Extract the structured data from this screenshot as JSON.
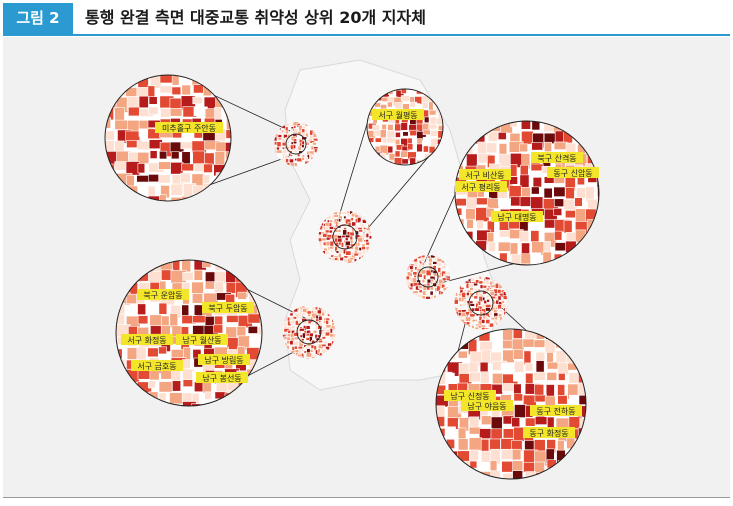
{
  "header": {
    "figure_label": "그림 2",
    "title": "통행 완결 측면 대중교통 취약성 상위 20개 지자체"
  },
  "colors": {
    "accent": "#2a9ad0",
    "label_bg": "#f2e52a",
    "darkest": "#6b0a0a",
    "dark": "#b71c1c",
    "mid": "#e34a33",
    "light": "#f4a582",
    "lightest": "#fde0d2"
  },
  "regions": [
    {
      "name": "incheon",
      "labels": [
        "미추홀구 주안동"
      ]
    },
    {
      "name": "daejeon",
      "labels": [
        "서구 월평동"
      ]
    },
    {
      "name": "daegu",
      "labels": [
        "북구 산격동",
        "동구 신암동",
        "서구 비산동",
        "서구 평리동",
        "남구 대명동"
      ]
    },
    {
      "name": "gwangju",
      "labels": [
        "북구 운암동",
        "북구 두암동",
        "서구 화정동",
        "남구 월산동",
        "남구 방림동",
        "서구 금호동",
        "남구 봉선동"
      ]
    },
    {
      "name": "ulsan",
      "labels": [
        "남구 신정동",
        "남구 야음동",
        "동구 전하동",
        "동구 화정동"
      ]
    }
  ]
}
